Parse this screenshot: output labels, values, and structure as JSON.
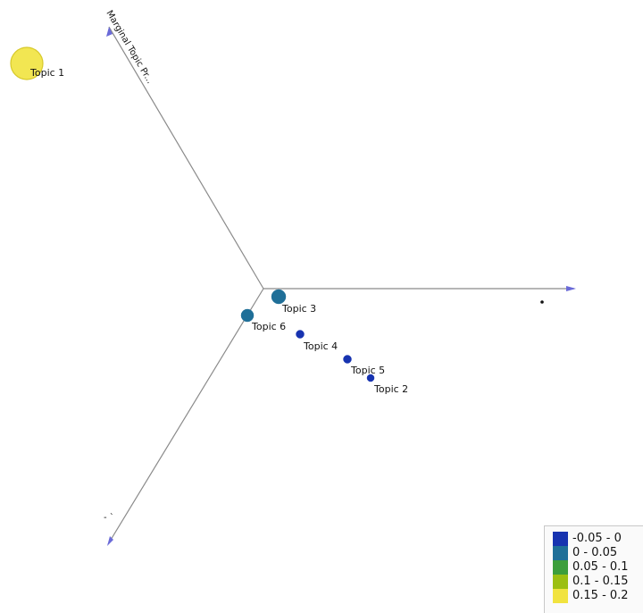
{
  "chart_data": {
    "type": "scatter",
    "title": "",
    "axes": {
      "vertical_label": "Marginal Topic Pr...",
      "horizontal_label": "",
      "third_label": "- `"
    },
    "topics": [
      {
        "name": "Topic 1",
        "value": 0.18
      },
      {
        "name": "Topic 3",
        "value": 0.02
      },
      {
        "name": "Topic 6",
        "value": 0.015
      },
      {
        "name": "Topic 4",
        "value": -0.01
      },
      {
        "name": "Topic 5",
        "value": -0.01
      },
      {
        "name": "Topic 2",
        "value": -0.015
      }
    ],
    "legend": {
      "placement": "bottom-right",
      "entries": [
        {
          "label": "-0.05 - 0",
          "color": "#1733b0"
        },
        {
          "label": "0 - 0.05",
          "color": "#1f6f98"
        },
        {
          "label": "0.05 - 0.1",
          "color": "#3c9e3c"
        },
        {
          "label": "0.1 - 0.15",
          "color": "#9cbf12"
        },
        {
          "label": "0.15 - 0.2",
          "color": "#f1e33f"
        }
      ]
    }
  }
}
